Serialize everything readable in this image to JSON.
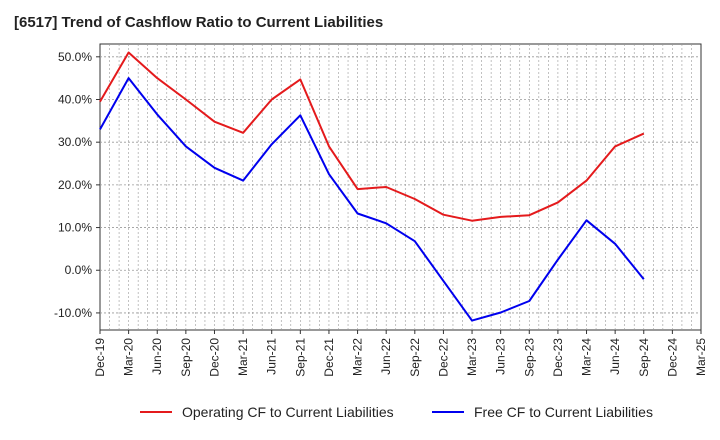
{
  "title": "[6517]  Trend of Cashflow Ratio to Current Liabilities",
  "colors": {
    "operating": "#e41a1c",
    "free": "#0000ee",
    "grid": "#999999",
    "axis": "#333333"
  },
  "chart_data": {
    "type": "line",
    "x": [
      "Dec-19",
      "Mar-20",
      "Jun-20",
      "Sep-20",
      "Dec-20",
      "Mar-21",
      "Jun-21",
      "Sep-21",
      "Dec-21",
      "Mar-22",
      "Jun-22",
      "Sep-22",
      "Dec-22",
      "Mar-23",
      "Jun-23",
      "Sep-23",
      "Dec-23",
      "Mar-24",
      "Jun-24",
      "Sep-24",
      "Dec-24",
      "Mar-25"
    ],
    "ylim": [
      -14,
      53
    ],
    "yticks": [
      -10,
      0,
      10,
      20,
      30,
      40,
      50
    ],
    "ytick_labels": [
      "-10.0%",
      "0.0%",
      "10.0%",
      "20.0%",
      "30.0%",
      "40.0%",
      "50.0%"
    ],
    "grid": true,
    "legend_position": "bottom",
    "series": [
      {
        "name": "Operating CF to Current Liabilities",
        "color": "#e41a1c",
        "values": [
          39.5,
          51.0,
          45.0,
          40.0,
          34.8,
          32.2,
          40.0,
          44.7,
          29.0,
          19.0,
          19.5,
          16.7,
          13.0,
          11.6,
          12.5,
          12.9,
          15.9,
          21.0,
          29.0,
          32.0,
          null,
          null
        ]
      },
      {
        "name": "Free CF to Current Liabilities",
        "color": "#0000ee",
        "values": [
          33.0,
          45.0,
          36.5,
          29.0,
          24.0,
          21.0,
          29.5,
          36.3,
          22.5,
          13.3,
          11.0,
          6.8,
          -2.5,
          -11.8,
          -9.9,
          -7.2,
          2.5,
          11.7,
          6.2,
          -2.1,
          null,
          null
        ]
      }
    ]
  }
}
